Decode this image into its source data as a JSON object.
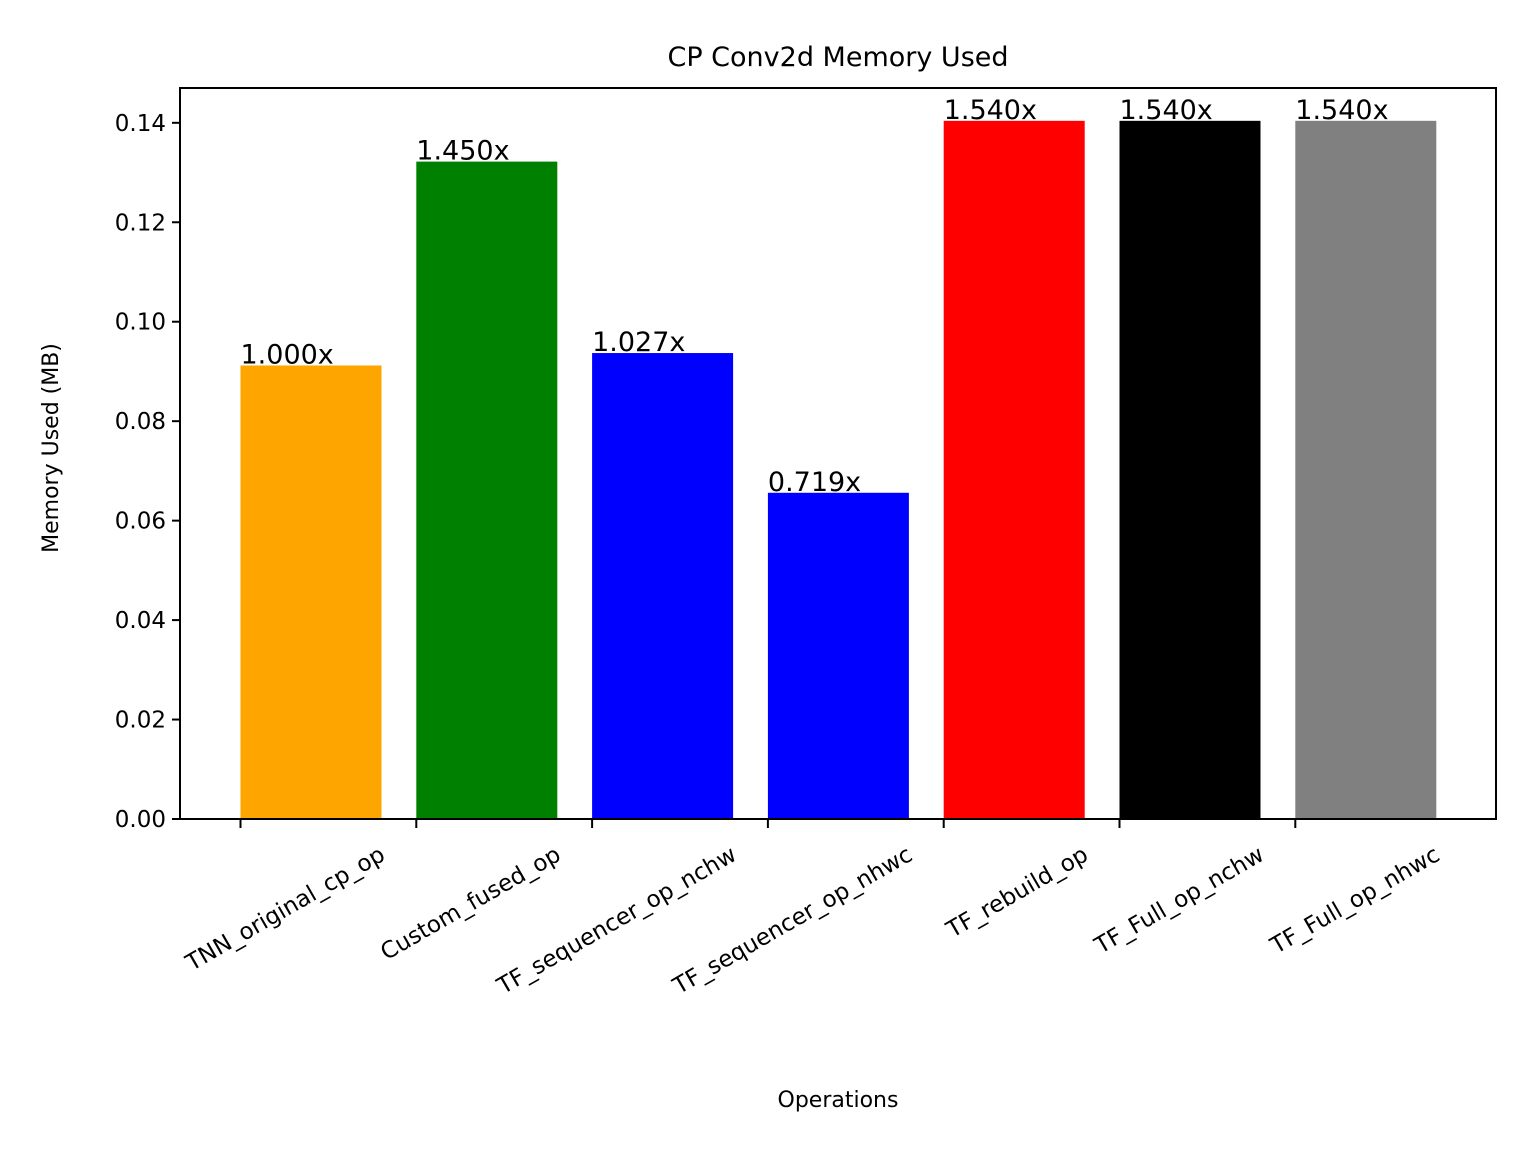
{
  "chart_data": {
    "type": "bar",
    "title": "CP Conv2d Memory Used",
    "xlabel": "Operations",
    "ylabel": "Memory Used (MB)",
    "ylim": [
      0,
      0.147
    ],
    "yticks": [
      "0.00",
      "0.02",
      "0.04",
      "0.06",
      "0.08",
      "0.10",
      "0.12",
      "0.14"
    ],
    "grid": false,
    "categories": [
      "TNN_original_cp_op",
      "Custom_fused_op",
      "TF_sequencer_op_nchw",
      "TF_sequencer_op_nhwc",
      "TF_rebuild_op",
      "TF_Full_op_nchw",
      "TF_Full_op_nhwc"
    ],
    "values": [
      0.0912,
      0.1322,
      0.0937,
      0.0656,
      0.1404,
      0.1404,
      0.1404
    ],
    "bar_labels": [
      "1.000x",
      "1.450x",
      "1.027x",
      "0.719x",
      "1.540x",
      "1.540x",
      "1.540x"
    ],
    "colors": [
      "#FFA500",
      "#008000",
      "#0000FF",
      "#0000FF",
      "#FF0000",
      "#000000",
      "#808080"
    ]
  }
}
